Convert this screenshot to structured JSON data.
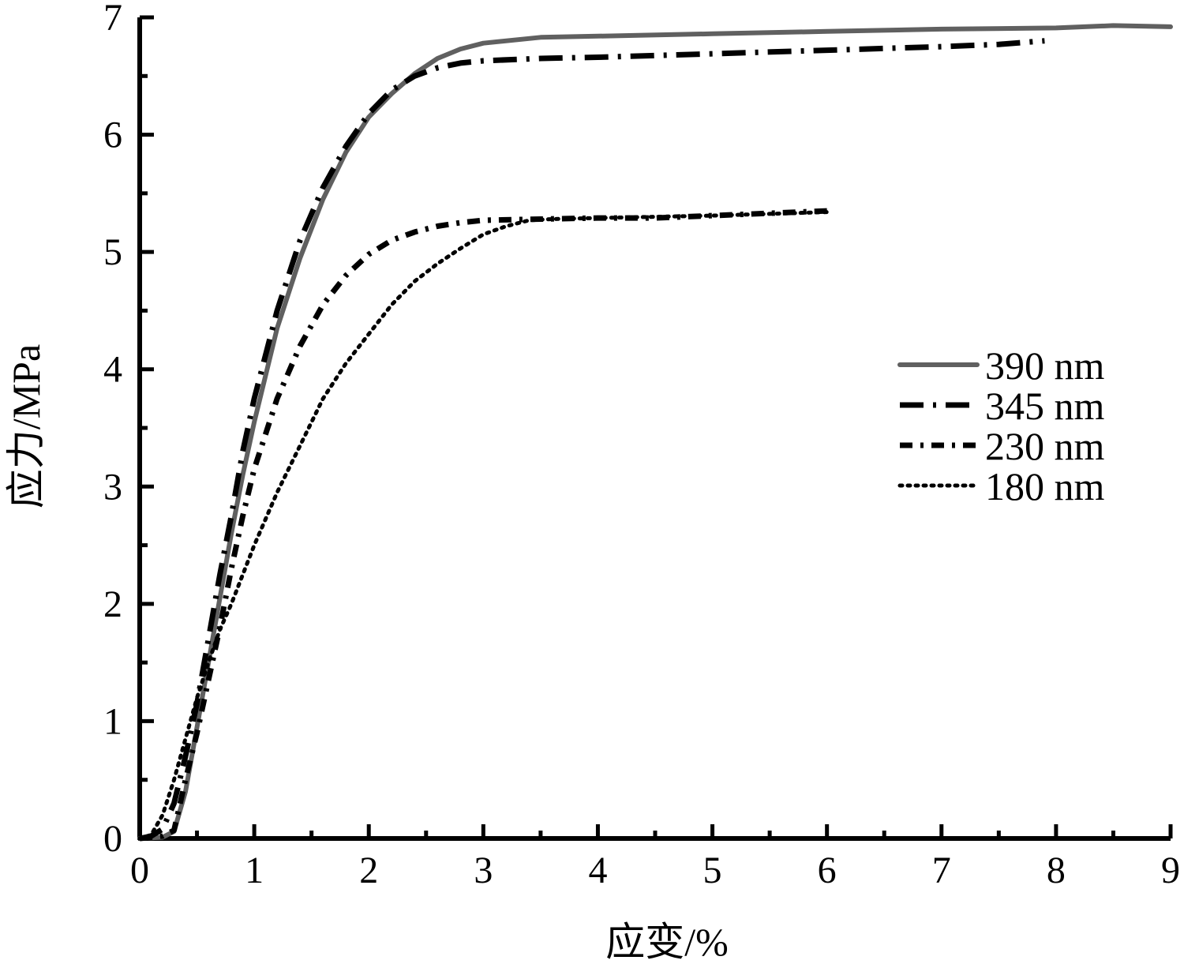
{
  "chart_data": {
    "type": "line",
    "title": "",
    "xlabel": "应变/%",
    "ylabel": "应力/MPa",
    "xlim": [
      0,
      9
    ],
    "ylim": [
      0,
      7
    ],
    "xticks": [
      "0",
      "1",
      "2",
      "3",
      "4",
      "5",
      "6",
      "7",
      "8",
      "9"
    ],
    "yticks": [
      "0",
      "1",
      "2",
      "3",
      "4",
      "5",
      "6",
      "7"
    ],
    "grid": false,
    "legend_position": "right",
    "series": [
      {
        "name": "390 nm",
        "style": "solid",
        "color": "#606060",
        "points": [
          [
            0,
            0
          ],
          [
            0.2,
            0.01
          ],
          [
            0.3,
            0.06
          ],
          [
            0.4,
            0.4
          ],
          [
            0.5,
            0.95
          ],
          [
            0.6,
            1.5
          ],
          [
            0.7,
            2.05
          ],
          [
            0.8,
            2.6
          ],
          [
            0.9,
            3.1
          ],
          [
            1.0,
            3.55
          ],
          [
            1.2,
            4.35
          ],
          [
            1.4,
            4.95
          ],
          [
            1.6,
            5.45
          ],
          [
            1.8,
            5.85
          ],
          [
            2.0,
            6.15
          ],
          [
            2.2,
            6.35
          ],
          [
            2.4,
            6.52
          ],
          [
            2.6,
            6.65
          ],
          [
            2.8,
            6.73
          ],
          [
            3.0,
            6.78
          ],
          [
            3.5,
            6.83
          ],
          [
            4.0,
            6.84
          ],
          [
            5.0,
            6.86
          ],
          [
            6.0,
            6.88
          ],
          [
            7.0,
            6.9
          ],
          [
            8.0,
            6.91
          ],
          [
            8.5,
            6.93
          ],
          [
            9.0,
            6.92
          ]
        ]
      },
      {
        "name": "345 nm",
        "style": "dash-dot",
        "color": "#000000",
        "points": [
          [
            0,
            0
          ],
          [
            0.1,
            0.02
          ],
          [
            0.2,
            0.08
          ],
          [
            0.3,
            0.3
          ],
          [
            0.4,
            0.7
          ],
          [
            0.5,
            1.15
          ],
          [
            0.6,
            1.7
          ],
          [
            0.7,
            2.25
          ],
          [
            0.8,
            2.75
          ],
          [
            0.9,
            3.3
          ],
          [
            1.0,
            3.75
          ],
          [
            1.2,
            4.5
          ],
          [
            1.4,
            5.1
          ],
          [
            1.6,
            5.55
          ],
          [
            1.8,
            5.9
          ],
          [
            2.0,
            6.18
          ],
          [
            2.2,
            6.38
          ],
          [
            2.4,
            6.5
          ],
          [
            2.6,
            6.57
          ],
          [
            2.8,
            6.61
          ],
          [
            3.0,
            6.63
          ],
          [
            3.5,
            6.65
          ],
          [
            4.0,
            6.66
          ],
          [
            5.0,
            6.69
          ],
          [
            6.0,
            6.72
          ],
          [
            7.0,
            6.75
          ],
          [
            7.5,
            6.77
          ],
          [
            7.9,
            6.8
          ]
        ]
      },
      {
        "name": "230 nm",
        "style": "dash-dot-dot",
        "color": "#000000",
        "points": [
          [
            0,
            0
          ],
          [
            0.2,
            0.02
          ],
          [
            0.3,
            0.07
          ],
          [
            0.4,
            0.5
          ],
          [
            0.5,
            0.9
          ],
          [
            0.6,
            1.35
          ],
          [
            0.7,
            1.8
          ],
          [
            0.8,
            2.3
          ],
          [
            0.9,
            2.75
          ],
          [
            1.0,
            3.15
          ],
          [
            1.2,
            3.75
          ],
          [
            1.4,
            4.2
          ],
          [
            1.6,
            4.55
          ],
          [
            1.8,
            4.8
          ],
          [
            2.0,
            4.98
          ],
          [
            2.2,
            5.1
          ],
          [
            2.4,
            5.17
          ],
          [
            2.6,
            5.22
          ],
          [
            2.8,
            5.25
          ],
          [
            3.0,
            5.27
          ],
          [
            3.5,
            5.28
          ],
          [
            4.0,
            5.29
          ],
          [
            4.5,
            5.29
          ],
          [
            5.0,
            5.31
          ],
          [
            5.5,
            5.33
          ],
          [
            6.0,
            5.35
          ]
        ]
      },
      {
        "name": "180 nm",
        "style": "dotted",
        "color": "#000000",
        "points": [
          [
            0,
            0
          ],
          [
            0.1,
            0.03
          ],
          [
            0.2,
            0.2
          ],
          [
            0.3,
            0.5
          ],
          [
            0.4,
            0.85
          ],
          [
            0.5,
            1.2
          ],
          [
            0.6,
            1.5
          ],
          [
            0.7,
            1.78
          ],
          [
            0.8,
            2.0
          ],
          [
            0.9,
            2.25
          ],
          [
            1.0,
            2.5
          ],
          [
            1.2,
            2.95
          ],
          [
            1.4,
            3.35
          ],
          [
            1.6,
            3.75
          ],
          [
            1.8,
            4.05
          ],
          [
            2.0,
            4.3
          ],
          [
            2.2,
            4.55
          ],
          [
            2.4,
            4.75
          ],
          [
            2.6,
            4.9
          ],
          [
            2.8,
            5.03
          ],
          [
            3.0,
            5.15
          ],
          [
            3.2,
            5.22
          ],
          [
            3.4,
            5.27
          ],
          [
            3.6,
            5.28
          ],
          [
            4.0,
            5.29
          ],
          [
            5.0,
            5.31
          ],
          [
            6.0,
            5.34
          ]
        ]
      }
    ]
  }
}
